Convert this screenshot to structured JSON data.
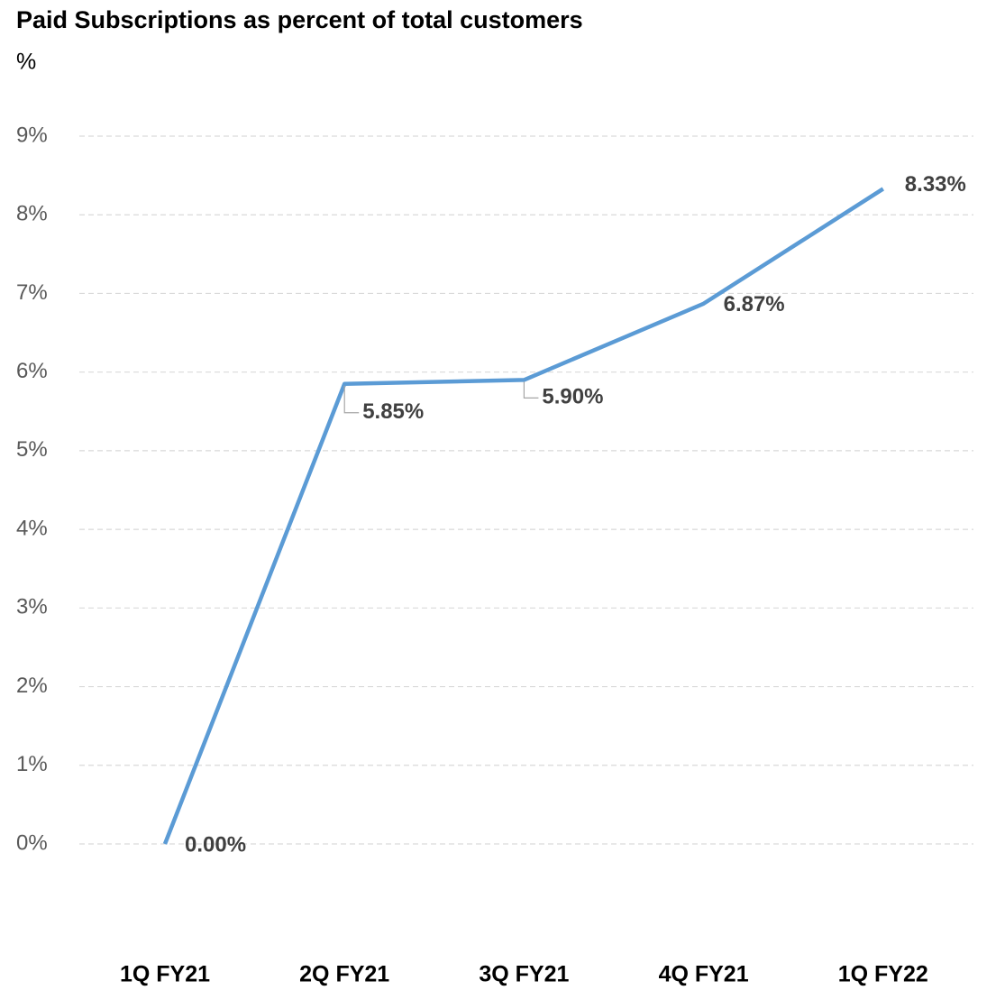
{
  "chart_data": {
    "type": "line",
    "title": "Paid Subscriptions as percent of total customers",
    "y_axis_label": "%",
    "categories": [
      "1Q FY21",
      "2Q FY21",
      "3Q FY21",
      "4Q FY21",
      "1Q FY22"
    ],
    "series": [
      {
        "name": "Paid Subscriptions",
        "color": "#5b9bd5",
        "values": [
          0,
          5.85,
          5.9,
          6.87,
          8.33
        ],
        "value_labels": [
          "0.00%",
          "5.85%",
          "5.90%",
          "6.87%",
          "8.33%"
        ]
      }
    ],
    "ylim": [
      0,
      9
    ],
    "yticks": [
      {
        "value": 0,
        "label": "0%"
      },
      {
        "value": 1,
        "label": "1%"
      },
      {
        "value": 2,
        "label": "2%"
      },
      {
        "value": 3,
        "label": "3%"
      },
      {
        "value": 4,
        "label": "4%"
      },
      {
        "value": 5,
        "label": "5%"
      },
      {
        "value": 6,
        "label": "6%"
      },
      {
        "value": 7,
        "label": "7%"
      },
      {
        "value": 8,
        "label": "8%"
      },
      {
        "value": 9,
        "label": "9%"
      }
    ],
    "grid": true
  }
}
